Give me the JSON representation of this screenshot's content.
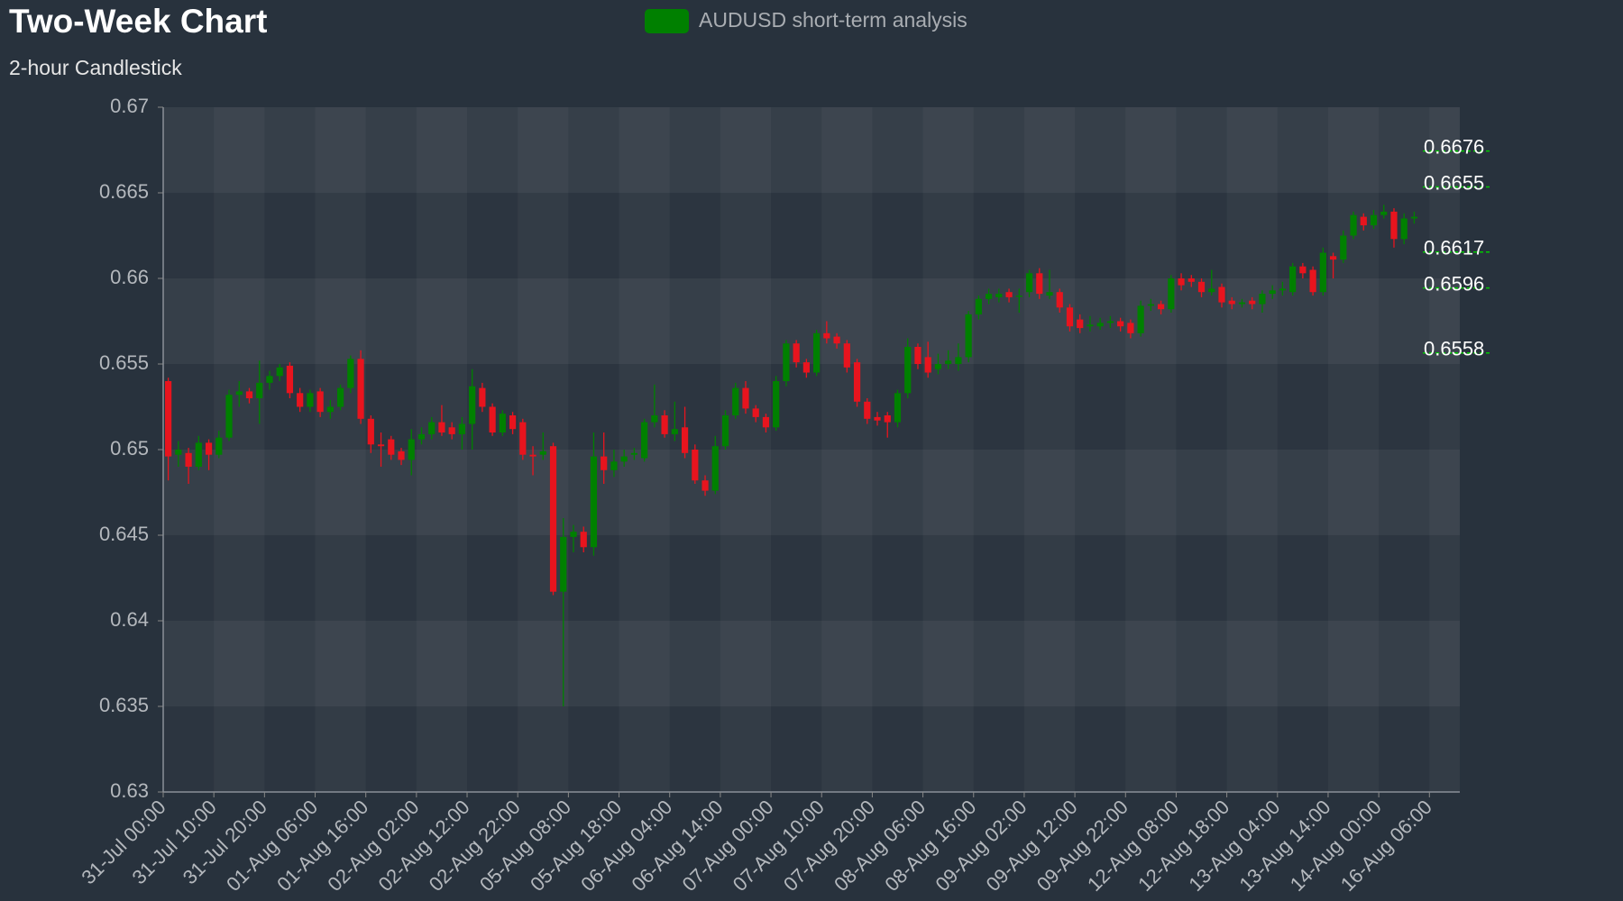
{
  "chart_data": {
    "type": "candlestick",
    "title": "Two-Week Chart",
    "subtitle": "2-hour Candlestick",
    "legend": "AUDUSD short-term analysis",
    "legend_color": "#008000",
    "up_color": "#008000",
    "down_color": "#e8141e",
    "level_color": "#00c800",
    "categories": [
      "31-Jul 00:00",
      null,
      null,
      null,
      null,
      "31-Jul 10:00",
      null,
      null,
      null,
      null,
      "31-Jul 20:00",
      null,
      null,
      null,
      null,
      "01-Aug 06:00",
      null,
      null,
      null,
      null,
      "01-Aug 16:00",
      null,
      null,
      null,
      null,
      "02-Aug 02:00",
      null,
      null,
      null,
      null,
      "02-Aug 12:00",
      null,
      null,
      null,
      null,
      "02-Aug 22:00",
      null,
      null,
      null,
      null,
      "05-Aug 08:00",
      null,
      null,
      null,
      null,
      "05-Aug 18:00",
      null,
      null,
      null,
      null,
      "06-Aug 04:00",
      null,
      null,
      null,
      null,
      "06-Aug 14:00",
      null,
      null,
      null,
      null,
      "07-Aug 00:00",
      null,
      null,
      null,
      null,
      "07-Aug 10:00",
      null,
      null,
      null,
      null,
      "07-Aug 20:00",
      null,
      null,
      null,
      null,
      "08-Aug 06:00",
      null,
      null,
      null,
      null,
      "08-Aug 16:00",
      null,
      null,
      null,
      null,
      "09-Aug 02:00",
      null,
      null,
      null,
      null,
      "09-Aug 12:00",
      null,
      null,
      null,
      null,
      "09-Aug 22:00",
      null,
      null,
      null,
      null,
      "12-Aug 08:00",
      null,
      null,
      null,
      null,
      "12-Aug 18:00",
      null,
      null,
      null,
      null,
      "13-Aug 04:00",
      null,
      null,
      null,
      null,
      "13-Aug 14:00",
      null,
      null,
      null,
      null,
      "14-Aug 00:00",
      null,
      null,
      null,
      null,
      "16-Aug 06:00",
      null,
      null
    ],
    "open": [
      0.654,
      0.6497,
      0.6498,
      0.649,
      0.6504,
      0.6497,
      0.6507,
      0.6532,
      0.6534,
      0.653,
      0.6539,
      0.6543,
      0.6549,
      0.6533,
      0.6525,
      0.6534,
      0.6522,
      0.6525,
      0.6536,
      0.6553,
      0.6518,
      0.6503,
      0.6506,
      0.6499,
      0.6494,
      0.6506,
      0.6509,
      0.6516,
      0.6513,
      0.6509,
      0.6515,
      0.6536,
      0.6525,
      0.651,
      0.652,
      0.6516,
      0.6497,
      0.6497,
      0.6502,
      0.6417,
      0.6449,
      0.6452,
      0.6443,
      0.6496,
      0.6488,
      0.6493,
      0.6497,
      0.6495,
      0.6516,
      0.652,
      0.6509,
      0.6513,
      0.65,
      0.6482,
      0.6476,
      0.6502,
      0.652,
      0.6536,
      0.6524,
      0.6519,
      0.6513,
      0.654,
      0.6562,
      0.6551,
      0.6545,
      0.6568,
      0.6566,
      0.6562,
      0.6551,
      0.6528,
      0.6519,
      0.652,
      0.6516,
      0.6533,
      0.656,
      0.6554,
      0.6547,
      0.655,
      0.655,
      0.6554,
      0.6579,
      0.6588,
      0.6589,
      0.6592,
      0.659,
      0.6592,
      0.6603,
      0.659,
      0.6592,
      0.6583,
      0.6576,
      0.6572,
      0.6572,
      0.6574,
      0.6575,
      0.6574,
      0.6568,
      0.6584,
      0.6585,
      0.6582,
      0.66,
      0.66,
      0.6598,
      0.6592,
      0.6595,
      0.6587,
      0.6585,
      0.6587,
      0.6585,
      0.6591,
      0.6593,
      0.6592,
      0.6607,
      0.6605,
      0.6592,
      0.6613,
      0.6611,
      0.6625,
      0.6636,
      0.6631,
      0.6637,
      0.6639,
      0.6623,
      0.6635,
      null,
      null,
      null,
      null
    ],
    "high": [
      0.6542,
      0.6505,
      0.6501,
      0.6508,
      0.6506,
      0.6511,
      0.6535,
      0.654,
      0.6536,
      0.6552,
      0.6546,
      0.655,
      0.6551,
      0.6536,
      0.6535,
      0.6536,
      0.6529,
      0.6538,
      0.6555,
      0.6558,
      0.652,
      0.651,
      0.6508,
      0.6501,
      0.6512,
      0.6513,
      0.6519,
      0.6526,
      0.6516,
      0.6519,
      0.6547,
      0.6539,
      0.6527,
      0.6523,
      0.6522,
      0.6518,
      0.6502,
      0.651,
      0.6504,
      0.646,
      0.6456,
      0.6455,
      0.651,
      0.651,
      0.65,
      0.65,
      0.6501,
      0.6518,
      0.6538,
      0.6523,
      0.6528,
      0.6525,
      0.6503,
      0.6485,
      0.6508,
      0.6523,
      0.6539,
      0.654,
      0.6526,
      0.6521,
      0.6543,
      0.6564,
      0.6564,
      0.6553,
      0.657,
      0.6575,
      0.6568,
      0.6564,
      0.6553,
      0.653,
      0.6522,
      0.6522,
      0.6535,
      0.6565,
      0.6562,
      0.6563,
      0.6556,
      0.6558,
      0.6562,
      0.6581,
      0.659,
      0.6594,
      0.6594,
      0.6594,
      0.6594,
      0.6605,
      0.6606,
      0.6605,
      0.6594,
      0.6585,
      0.6579,
      0.6578,
      0.6577,
      0.6578,
      0.6577,
      0.6576,
      0.6587,
      0.6588,
      0.6587,
      0.6602,
      0.6603,
      0.6602,
      0.66,
      0.6605,
      0.6597,
      0.6589,
      0.6588,
      0.6589,
      0.6593,
      0.6596,
      0.6598,
      0.6609,
      0.6609,
      0.6607,
      0.6618,
      0.6615,
      0.6628,
      0.6639,
      0.6638,
      0.664,
      0.6643,
      0.6641,
      0.6638,
      0.6639,
      null,
      null,
      null,
      null
    ],
    "low": [
      0.6482,
      0.649,
      0.648,
      0.6488,
      0.6488,
      0.6495,
      0.6505,
      0.6525,
      0.6527,
      0.6515,
      0.6535,
      0.654,
      0.653,
      0.6522,
      0.6522,
      0.6519,
      0.6518,
      0.6523,
      0.6533,
      0.6515,
      0.6498,
      0.649,
      0.6494,
      0.6491,
      0.6485,
      0.6503,
      0.6506,
      0.6508,
      0.6506,
      0.65,
      0.65,
      0.6522,
      0.6508,
      0.6508,
      0.6509,
      0.6494,
      0.6485,
      0.6494,
      0.6415,
      0.635,
      0.644,
      0.644,
      0.6438,
      0.648,
      0.6484,
      0.649,
      0.6494,
      0.6493,
      0.6513,
      0.6507,
      0.6505,
      0.6495,
      0.648,
      0.6473,
      0.6474,
      0.65,
      0.6518,
      0.6521,
      0.6516,
      0.651,
      0.6511,
      0.6537,
      0.6548,
      0.6542,
      0.6543,
      0.6562,
      0.6559,
      0.6545,
      0.6525,
      0.6515,
      0.6514,
      0.6507,
      0.6513,
      0.653,
      0.6547,
      0.6542,
      0.6544,
      0.6547,
      0.6546,
      0.6551,
      0.6576,
      0.6585,
      0.6586,
      0.6586,
      0.658,
      0.6589,
      0.6588,
      0.6588,
      0.658,
      0.6569,
      0.6568,
      0.6569,
      0.657,
      0.6571,
      0.6569,
      0.6565,
      0.6566,
      0.6581,
      0.6579,
      0.658,
      0.6593,
      0.6595,
      0.6589,
      0.659,
      0.6583,
      0.6582,
      0.6583,
      0.6582,
      0.658,
      0.6588,
      0.659,
      0.659,
      0.66,
      0.659,
      0.659,
      0.66,
      0.6609,
      0.6623,
      0.6628,
      0.6629,
      0.6635,
      0.6618,
      0.662,
      0.6632,
      null,
      null,
      null,
      null
    ],
    "close": [
      0.6496,
      0.65,
      0.649,
      0.6504,
      0.6497,
      0.6507,
      0.6532,
      0.6534,
      0.653,
      0.6539,
      0.6543,
      0.6548,
      0.6533,
      0.6525,
      0.6533,
      0.6522,
      0.6525,
      0.6536,
      0.6553,
      0.6518,
      0.6503,
      0.6502,
      0.6497,
      0.6494,
      0.6506,
      0.6509,
      0.6516,
      0.651,
      0.6509,
      0.6515,
      0.6537,
      0.6525,
      0.651,
      0.6521,
      0.6512,
      0.6497,
      0.6496,
      0.6499,
      0.6417,
      0.6449,
      0.6452,
      0.6443,
      0.6496,
      0.6488,
      0.6493,
      0.6496,
      0.6498,
      0.6516,
      0.652,
      0.6509,
      0.6512,
      0.6498,
      0.6482,
      0.6476,
      0.6502,
      0.652,
      0.6536,
      0.6524,
      0.6519,
      0.6513,
      0.654,
      0.6562,
      0.6551,
      0.6545,
      0.6568,
      0.6565,
      0.6562,
      0.6548,
      0.6528,
      0.6518,
      0.6517,
      0.6516,
      0.6533,
      0.656,
      0.655,
      0.6545,
      0.655,
      0.6552,
      0.6554,
      0.6579,
      0.6588,
      0.6591,
      0.6591,
      0.6589,
      0.659,
      0.6603,
      0.6591,
      0.6592,
      0.6583,
      0.6572,
      0.6571,
      0.6573,
      0.6574,
      0.6575,
      0.6572,
      0.6568,
      0.6584,
      0.6585,
      0.6582,
      0.66,
      0.6596,
      0.6598,
      0.6592,
      0.6594,
      0.6586,
      0.6585,
      0.6586,
      0.6585,
      0.6591,
      0.6593,
      0.6594,
      0.6607,
      0.6603,
      0.6592,
      0.6615,
      0.6611,
      0.6625,
      0.6637,
      0.6631,
      0.6637,
      0.6639,
      0.6623,
      0.6635,
      0.6636,
      null,
      null,
      null,
      null
    ],
    "levels": [
      0.6676,
      0.6655,
      0.6617,
      0.6596,
      0.6558
    ],
    "ylim": [
      0.63,
      0.67
    ],
    "yticks": [
      0.63,
      0.635,
      0.64,
      0.645,
      0.65,
      0.655,
      0.66,
      0.665,
      0.67
    ]
  }
}
